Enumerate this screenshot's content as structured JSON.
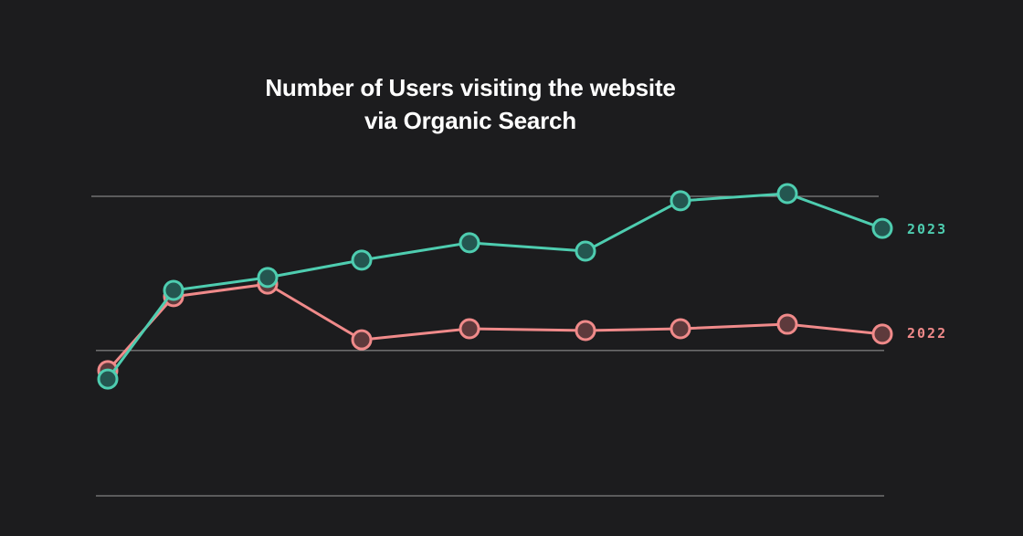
{
  "chart_data": {
    "type": "line",
    "title_line1": "Number of Users visiting the website",
    "title_line2": "via Organic Search",
    "xlabel": "",
    "ylabel": "",
    "ylim": [
      0,
      100
    ],
    "gridlines": [
      0,
      48.5,
      100
    ],
    "grid": true,
    "legend": "right, inline at line ends",
    "series": [
      {
        "name": "2023",
        "color": "#4ecdb0",
        "fill": "#245650",
        "values": [
          39.0,
          68.6,
          72.9,
          78.7,
          84.5,
          81.7,
          98.5,
          100.9,
          89.3
        ]
      },
      {
        "name": "2022",
        "color": "#f08a8a",
        "fill": "#5e3a3c",
        "values": [
          41.8,
          66.5,
          70.7,
          52.1,
          55.8,
          55.2,
          55.8,
          57.3,
          54.0
        ]
      }
    ]
  }
}
